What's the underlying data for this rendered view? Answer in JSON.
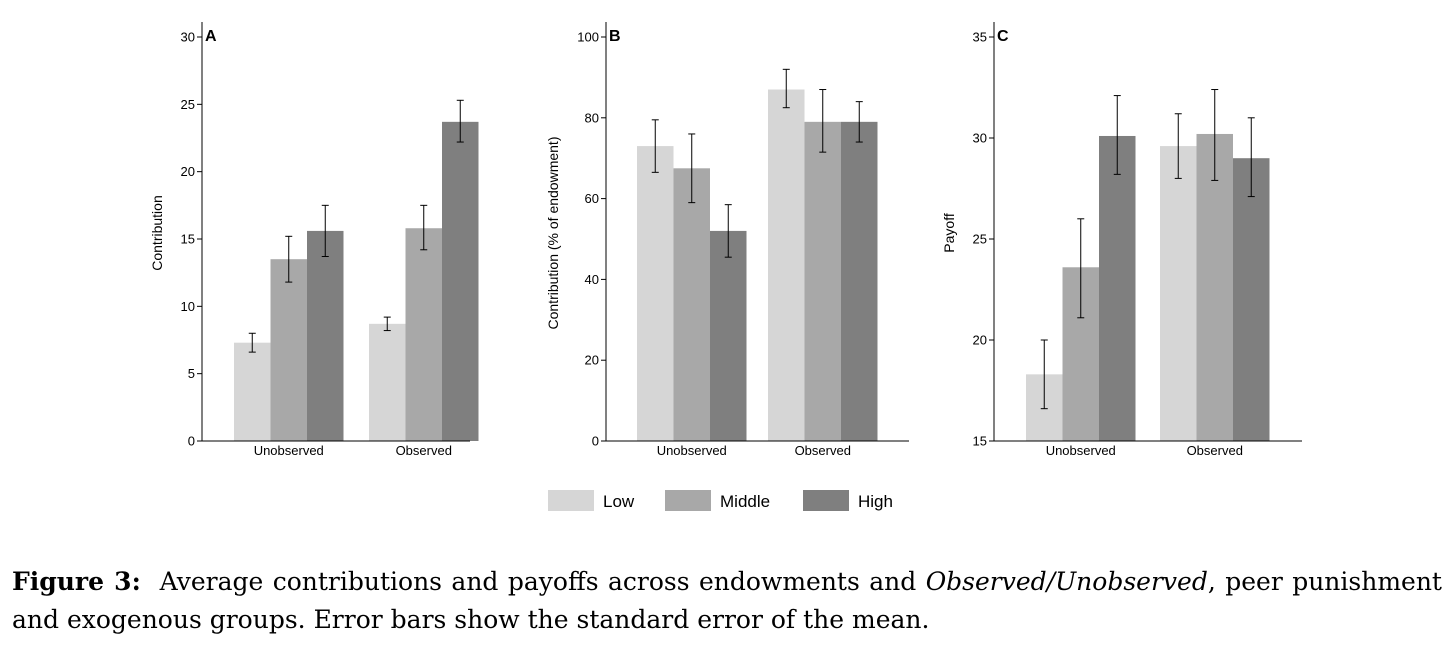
{
  "chart_data": [
    {
      "type": "bar",
      "panel_label": "A",
      "ylabel": "Contribution",
      "ylim": [
        0,
        30
      ],
      "yticks": [
        0,
        5,
        10,
        15,
        20,
        25,
        30
      ],
      "categories": [
        "Unobserved",
        "Observed"
      ],
      "series": [
        {
          "name": "Low",
          "values": [
            7.3,
            8.7
          ],
          "err_low": [
            6.6,
            8.2
          ],
          "err_high": [
            8.0,
            9.2
          ]
        },
        {
          "name": "Middle",
          "values": [
            13.5,
            15.8
          ],
          "err_low": [
            11.8,
            14.2
          ],
          "err_high": [
            15.2,
            17.5
          ]
        },
        {
          "name": "High",
          "values": [
            15.6,
            23.7
          ],
          "err_low": [
            13.7,
            22.2
          ],
          "err_high": [
            17.5,
            25.3
          ]
        }
      ]
    },
    {
      "type": "bar",
      "panel_label": "B",
      "ylabel": "Contribution (% of endowment)",
      "ylim": [
        0,
        100
      ],
      "yticks": [
        0,
        20,
        40,
        60,
        80,
        100
      ],
      "categories": [
        "Unobserved",
        "Observed"
      ],
      "series": [
        {
          "name": "Low",
          "values": [
            73,
            87
          ],
          "err_low": [
            66.5,
            82.5
          ],
          "err_high": [
            79.5,
            92
          ]
        },
        {
          "name": "Middle",
          "values": [
            67.5,
            79
          ],
          "err_low": [
            59,
            71.5
          ],
          "err_high": [
            76,
            87
          ]
        },
        {
          "name": "High",
          "values": [
            52,
            79
          ],
          "err_low": [
            45.5,
            74
          ],
          "err_high": [
            58.5,
            84
          ]
        }
      ]
    },
    {
      "type": "bar",
      "panel_label": "C",
      "ylabel": "Payoff",
      "ylim": [
        15,
        35
      ],
      "yticks": [
        15,
        20,
        25,
        30,
        35
      ],
      "categories": [
        "Unobserved",
        "Observed"
      ],
      "series": [
        {
          "name": "Low",
          "values": [
            18.3,
            29.6
          ],
          "err_low": [
            16.6,
            28.0
          ],
          "err_high": [
            20.0,
            31.2
          ]
        },
        {
          "name": "Middle",
          "values": [
            23.6,
            30.2
          ],
          "err_low": [
            21.1,
            27.9
          ],
          "err_high": [
            26.0,
            32.4
          ]
        },
        {
          "name": "High",
          "values": [
            30.1,
            29.0
          ],
          "err_low": [
            28.2,
            27.1
          ],
          "err_high": [
            32.1,
            31.0
          ]
        }
      ]
    }
  ],
  "legend": {
    "placement": "bottom-center",
    "items": [
      {
        "label": "Low",
        "color": "#d6d6d6"
      },
      {
        "label": "Middle",
        "color": "#a8a8a8"
      },
      {
        "label": "High",
        "color": "#7f7f7f"
      }
    ]
  },
  "caption": {
    "label": "Figure 3:",
    "text_before": "Average contributions and payoffs across endowments and ",
    "italic": "Observed/Unobserved",
    "text_after": ", peer punishment and exogenous groups. Error bars show the standard error of the mean."
  }
}
